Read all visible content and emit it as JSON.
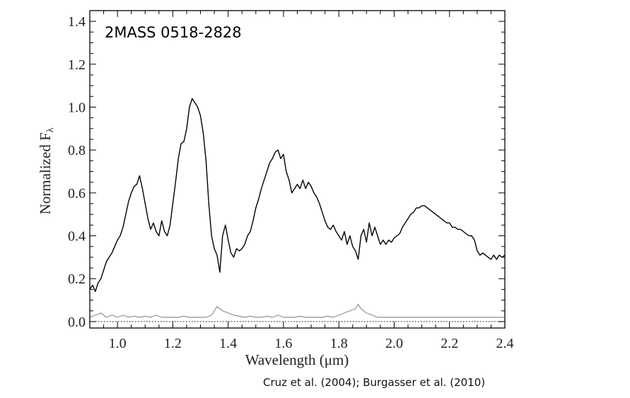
{
  "chart_data": {
    "type": "line",
    "annotation": "2MASS 0518-2828",
    "xlabel": "Wavelength (μm)",
    "ylabel": "Normalized F",
    "ylabel_subscript": "λ",
    "xlim": [
      0.9,
      2.4
    ],
    "ylim": [
      -0.03,
      1.45
    ],
    "xticks": [
      1.0,
      1.2,
      1.4,
      1.6,
      1.8,
      2.0,
      2.2,
      2.4
    ],
    "yticks": [
      0.0,
      0.2,
      0.4,
      0.6,
      0.8,
      1.0,
      1.2,
      1.4
    ],
    "xtick_labels": [
      "1.0",
      "1.2",
      "1.4",
      "1.6",
      "1.8",
      "2.0",
      "2.2",
      "2.4"
    ],
    "ytick_labels": [
      "0.0",
      "0.2",
      "0.4",
      "0.6",
      "0.8",
      "1.0",
      "1.2",
      "1.4"
    ],
    "zero_line": true,
    "grid": false,
    "series": [
      {
        "role": "spectrum",
        "color": "#000000",
        "points": [
          [
            0.9,
            0.15
          ],
          [
            0.91,
            0.17
          ],
          [
            0.92,
            0.14
          ],
          [
            0.93,
            0.18
          ],
          [
            0.94,
            0.2
          ],
          [
            0.95,
            0.24
          ],
          [
            0.96,
            0.28
          ],
          [
            0.97,
            0.3
          ],
          [
            0.98,
            0.32
          ],
          [
            0.99,
            0.35
          ],
          [
            1.0,
            0.38
          ],
          [
            1.01,
            0.4
          ],
          [
            1.02,
            0.44
          ],
          [
            1.03,
            0.5
          ],
          [
            1.04,
            0.56
          ],
          [
            1.05,
            0.6
          ],
          [
            1.06,
            0.63
          ],
          [
            1.07,
            0.64
          ],
          [
            1.08,
            0.68
          ],
          [
            1.09,
            0.62
          ],
          [
            1.1,
            0.55
          ],
          [
            1.11,
            0.48
          ],
          [
            1.12,
            0.43
          ],
          [
            1.13,
            0.46
          ],
          [
            1.14,
            0.42
          ],
          [
            1.15,
            0.4
          ],
          [
            1.16,
            0.47
          ],
          [
            1.17,
            0.42
          ],
          [
            1.18,
            0.4
          ],
          [
            1.19,
            0.45
          ],
          [
            1.2,
            0.55
          ],
          [
            1.21,
            0.65
          ],
          [
            1.22,
            0.76
          ],
          [
            1.23,
            0.83
          ],
          [
            1.24,
            0.84
          ],
          [
            1.25,
            0.9
          ],
          [
            1.26,
            1.0
          ],
          [
            1.27,
            1.04
          ],
          [
            1.28,
            1.02
          ],
          [
            1.29,
            1.0
          ],
          [
            1.3,
            0.96
          ],
          [
            1.31,
            0.88
          ],
          [
            1.32,
            0.75
          ],
          [
            1.33,
            0.55
          ],
          [
            1.34,
            0.4
          ],
          [
            1.35,
            0.34
          ],
          [
            1.36,
            0.31
          ],
          [
            1.37,
            0.23
          ],
          [
            1.38,
            0.4
          ],
          [
            1.39,
            0.45
          ],
          [
            1.4,
            0.38
          ],
          [
            1.41,
            0.32
          ],
          [
            1.42,
            0.3
          ],
          [
            1.43,
            0.34
          ],
          [
            1.44,
            0.33
          ],
          [
            1.45,
            0.34
          ],
          [
            1.46,
            0.36
          ],
          [
            1.47,
            0.4
          ],
          [
            1.48,
            0.42
          ],
          [
            1.49,
            0.47
          ],
          [
            1.5,
            0.53
          ],
          [
            1.51,
            0.57
          ],
          [
            1.52,
            0.62
          ],
          [
            1.53,
            0.66
          ],
          [
            1.54,
            0.7
          ],
          [
            1.55,
            0.74
          ],
          [
            1.56,
            0.76
          ],
          [
            1.57,
            0.79
          ],
          [
            1.58,
            0.8
          ],
          [
            1.59,
            0.76
          ],
          [
            1.6,
            0.78
          ],
          [
            1.61,
            0.7
          ],
          [
            1.62,
            0.66
          ],
          [
            1.63,
            0.6
          ],
          [
            1.64,
            0.62
          ],
          [
            1.65,
            0.64
          ],
          [
            1.66,
            0.62
          ],
          [
            1.67,
            0.66
          ],
          [
            1.68,
            0.62
          ],
          [
            1.69,
            0.65
          ],
          [
            1.7,
            0.63
          ],
          [
            1.71,
            0.6
          ],
          [
            1.72,
            0.58
          ],
          [
            1.73,
            0.55
          ],
          [
            1.74,
            0.51
          ],
          [
            1.75,
            0.47
          ],
          [
            1.76,
            0.44
          ],
          [
            1.77,
            0.43
          ],
          [
            1.78,
            0.45
          ],
          [
            1.79,
            0.42
          ],
          [
            1.8,
            0.4
          ],
          [
            1.81,
            0.38
          ],
          [
            1.82,
            0.42
          ],
          [
            1.83,
            0.36
          ],
          [
            1.84,
            0.4
          ],
          [
            1.85,
            0.35
          ],
          [
            1.86,
            0.33
          ],
          [
            1.87,
            0.29
          ],
          [
            1.88,
            0.4
          ],
          [
            1.89,
            0.43
          ],
          [
            1.9,
            0.37
          ],
          [
            1.91,
            0.46
          ],
          [
            1.92,
            0.4
          ],
          [
            1.93,
            0.44
          ],
          [
            1.94,
            0.4
          ],
          [
            1.95,
            0.36
          ],
          [
            1.96,
            0.38
          ],
          [
            1.97,
            0.36
          ],
          [
            1.98,
            0.38
          ],
          [
            1.99,
            0.37
          ],
          [
            2.0,
            0.39
          ],
          [
            2.01,
            0.4
          ],
          [
            2.02,
            0.41
          ],
          [
            2.03,
            0.44
          ],
          [
            2.04,
            0.46
          ],
          [
            2.05,
            0.48
          ],
          [
            2.06,
            0.5
          ],
          [
            2.07,
            0.51
          ],
          [
            2.08,
            0.53
          ],
          [
            2.09,
            0.53
          ],
          [
            2.1,
            0.54
          ],
          [
            2.11,
            0.54
          ],
          [
            2.12,
            0.53
          ],
          [
            2.13,
            0.52
          ],
          [
            2.14,
            0.51
          ],
          [
            2.15,
            0.5
          ],
          [
            2.16,
            0.49
          ],
          [
            2.17,
            0.48
          ],
          [
            2.18,
            0.47
          ],
          [
            2.19,
            0.46
          ],
          [
            2.2,
            0.46
          ],
          [
            2.21,
            0.44
          ],
          [
            2.22,
            0.44
          ],
          [
            2.23,
            0.43
          ],
          [
            2.24,
            0.43
          ],
          [
            2.25,
            0.42
          ],
          [
            2.26,
            0.41
          ],
          [
            2.27,
            0.4
          ],
          [
            2.28,
            0.4
          ],
          [
            2.29,
            0.38
          ],
          [
            2.3,
            0.33
          ],
          [
            2.31,
            0.31
          ],
          [
            2.32,
            0.32
          ],
          [
            2.33,
            0.31
          ],
          [
            2.34,
            0.3
          ],
          [
            2.35,
            0.29
          ],
          [
            2.36,
            0.31
          ],
          [
            2.37,
            0.29
          ],
          [
            2.38,
            0.31
          ],
          [
            2.39,
            0.3
          ],
          [
            2.4,
            0.31
          ]
        ]
      },
      {
        "role": "noise",
        "color": "#999999",
        "points": [
          [
            0.9,
            0.02
          ],
          [
            0.92,
            0.03
          ],
          [
            0.94,
            0.04
          ],
          [
            0.96,
            0.02
          ],
          [
            0.98,
            0.03
          ],
          [
            1.0,
            0.02
          ],
          [
            1.02,
            0.03
          ],
          [
            1.04,
            0.02
          ],
          [
            1.06,
            0.025
          ],
          [
            1.08,
            0.02
          ],
          [
            1.1,
            0.025
          ],
          [
            1.12,
            0.02
          ],
          [
            1.14,
            0.03
          ],
          [
            1.16,
            0.02
          ],
          [
            1.18,
            0.02
          ],
          [
            1.2,
            0.02
          ],
          [
            1.22,
            0.02
          ],
          [
            1.24,
            0.025
          ],
          [
            1.26,
            0.02
          ],
          [
            1.28,
            0.02
          ],
          [
            1.3,
            0.02
          ],
          [
            1.32,
            0.02
          ],
          [
            1.34,
            0.03
          ],
          [
            1.36,
            0.07
          ],
          [
            1.37,
            0.06
          ],
          [
            1.38,
            0.05
          ],
          [
            1.4,
            0.04
          ],
          [
            1.42,
            0.03
          ],
          [
            1.44,
            0.025
          ],
          [
            1.46,
            0.02
          ],
          [
            1.48,
            0.025
          ],
          [
            1.5,
            0.02
          ],
          [
            1.52,
            0.02
          ],
          [
            1.54,
            0.025
          ],
          [
            1.56,
            0.02
          ],
          [
            1.58,
            0.03
          ],
          [
            1.6,
            0.02
          ],
          [
            1.62,
            0.02
          ],
          [
            1.64,
            0.02
          ],
          [
            1.66,
            0.025
          ],
          [
            1.68,
            0.02
          ],
          [
            1.7,
            0.02
          ],
          [
            1.72,
            0.02
          ],
          [
            1.74,
            0.02
          ],
          [
            1.76,
            0.025
          ],
          [
            1.78,
            0.02
          ],
          [
            1.8,
            0.03
          ],
          [
            1.82,
            0.04
          ],
          [
            1.84,
            0.05
          ],
          [
            1.86,
            0.06
          ],
          [
            1.87,
            0.08
          ],
          [
            1.88,
            0.06
          ],
          [
            1.9,
            0.04
          ],
          [
            1.92,
            0.03
          ],
          [
            1.94,
            0.02
          ],
          [
            1.96,
            0.02
          ],
          [
            1.98,
            0.02
          ],
          [
            2.0,
            0.02
          ],
          [
            2.02,
            0.02
          ],
          [
            2.04,
            0.02
          ],
          [
            2.06,
            0.02
          ],
          [
            2.08,
            0.02
          ],
          [
            2.1,
            0.02
          ],
          [
            2.12,
            0.02
          ],
          [
            2.14,
            0.02
          ],
          [
            2.16,
            0.02
          ],
          [
            2.18,
            0.02
          ],
          [
            2.2,
            0.02
          ],
          [
            2.22,
            0.02
          ],
          [
            2.24,
            0.02
          ],
          [
            2.26,
            0.02
          ],
          [
            2.28,
            0.02
          ],
          [
            2.3,
            0.02
          ],
          [
            2.32,
            0.02
          ],
          [
            2.34,
            0.02
          ],
          [
            2.36,
            0.02
          ],
          [
            2.38,
            0.02
          ],
          [
            2.4,
            0.02
          ]
        ]
      }
    ],
    "source_credit": "Cruz et al. (2004); Burgasser et al. (2010)"
  }
}
